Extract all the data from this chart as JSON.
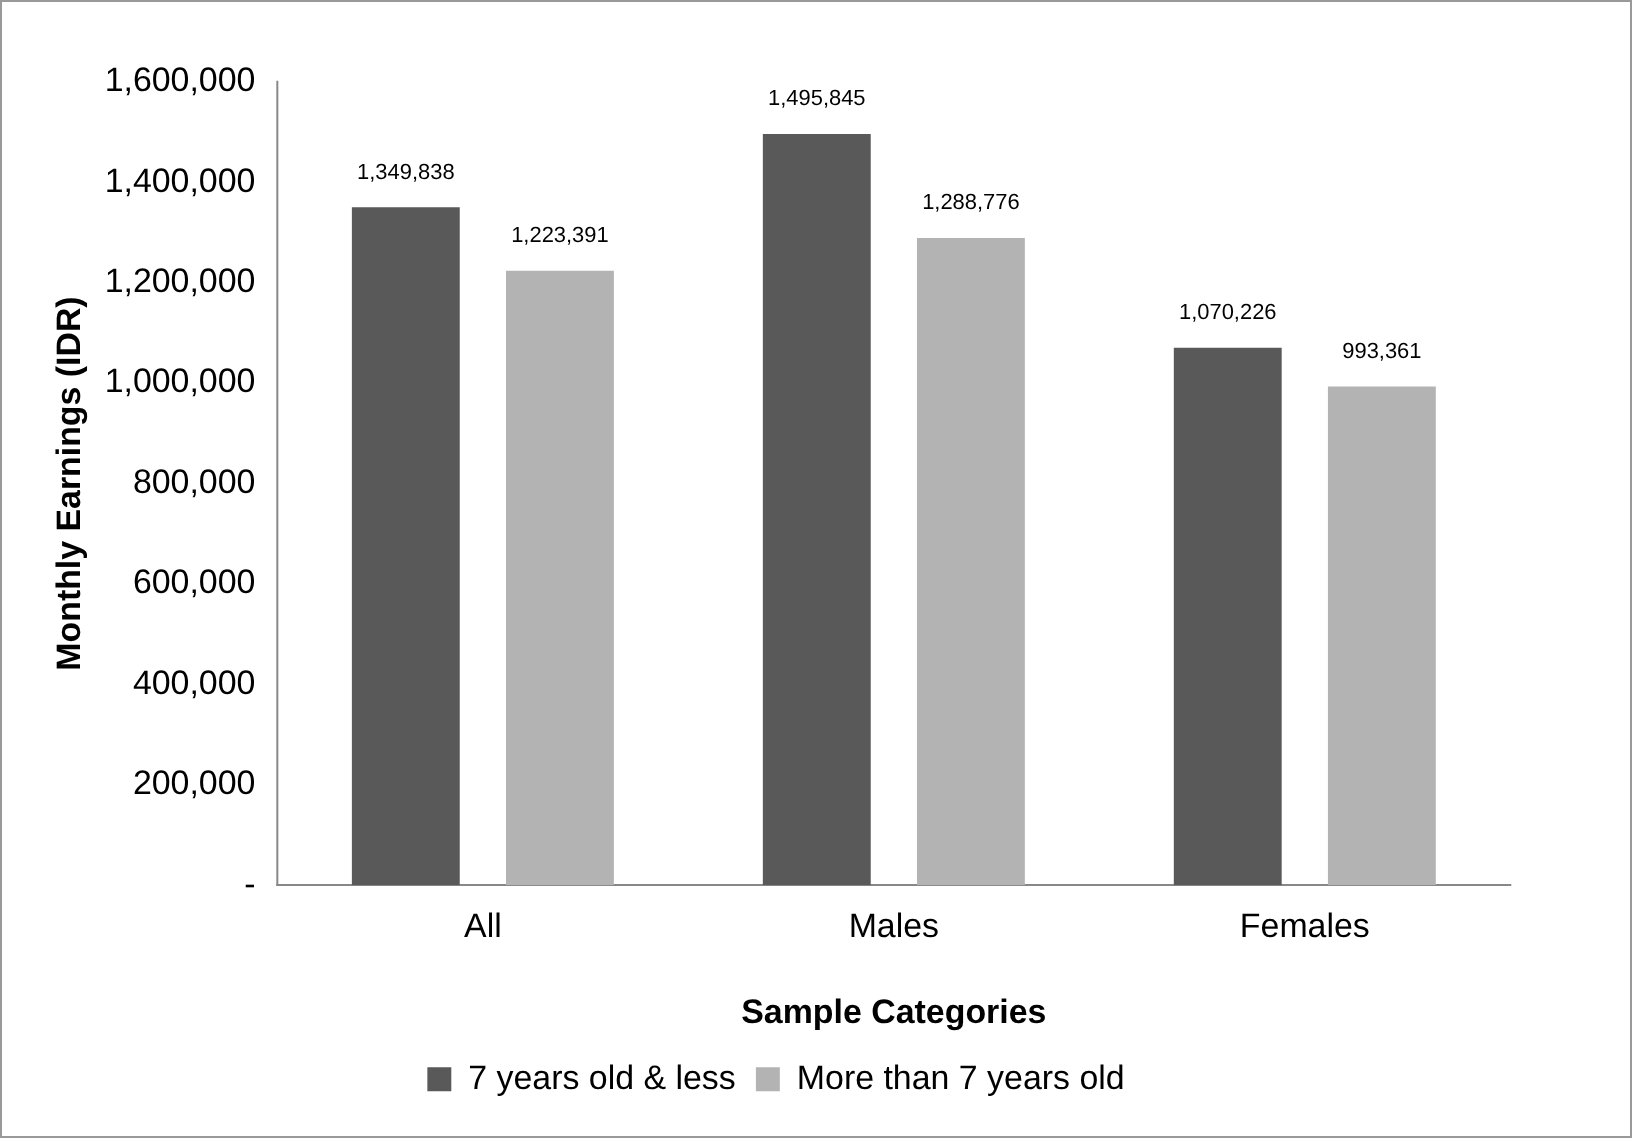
{
  "chart_data": {
    "type": "bar",
    "xlabel": "Sample Categories",
    "ylabel": "Monthly Earnings (IDR)",
    "categories": [
      "All",
      "Males",
      "Females"
    ],
    "series": [
      {
        "name": "7 years old & less",
        "color": "#595959",
        "values": [
          1349838,
          1495845,
          1070226
        ],
        "value_labels": [
          "1,349,838",
          "1,495,845",
          "1,070,226"
        ]
      },
      {
        "name": "More than 7 years old",
        "color": "#b3b3b3",
        "values": [
          1223391,
          1288776,
          993361
        ],
        "value_labels": [
          "1,223,391",
          "1,288,776",
          "993,361"
        ]
      }
    ],
    "ylim": [
      0,
      1600000
    ],
    "yticks": [
      {
        "value": 0,
        "label": "-"
      },
      {
        "value": 200000,
        "label": "200,000"
      },
      {
        "value": 400000,
        "label": "400,000"
      },
      {
        "value": 600000,
        "label": "600,000"
      },
      {
        "value": 800000,
        "label": "800,000"
      },
      {
        "value": 1000000,
        "label": "1,000,000"
      },
      {
        "value": 1200000,
        "label": "1,200,000"
      },
      {
        "value": 1400000,
        "label": "1,400,000"
      },
      {
        "value": 1600000,
        "label": "1,600,000"
      }
    ],
    "legend": "bottom"
  }
}
